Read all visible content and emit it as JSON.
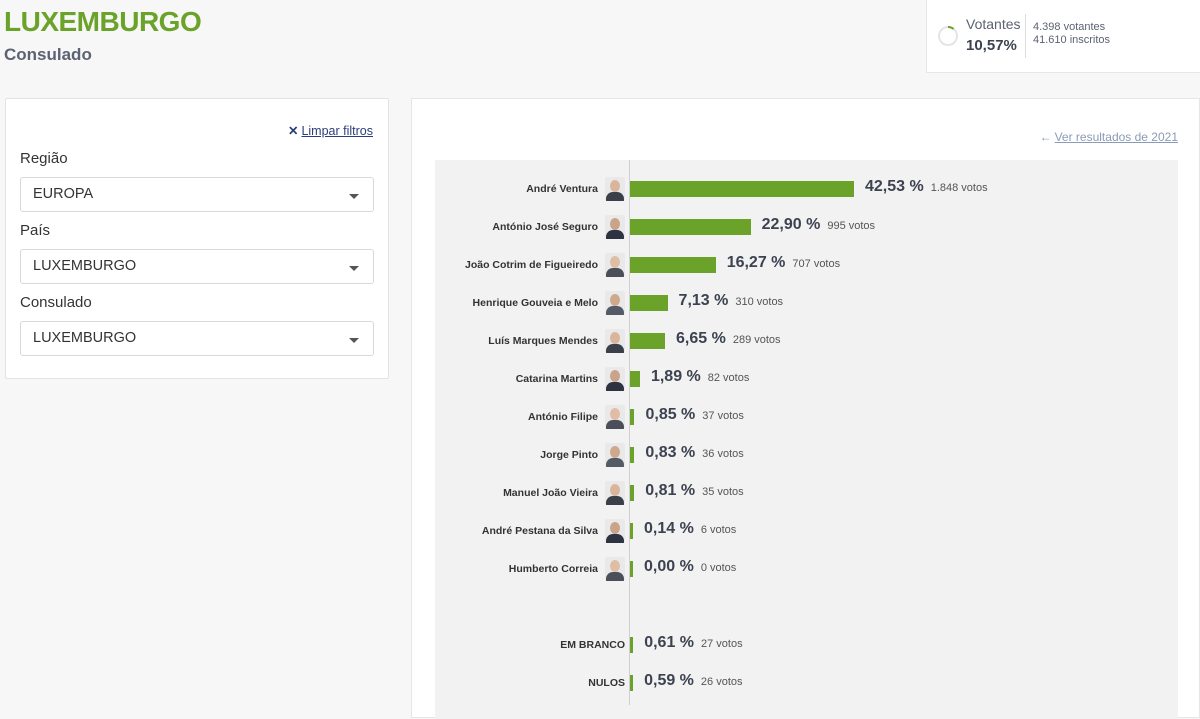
{
  "header": {
    "title": "LUXEMBURGO",
    "subtitle": "Consulado"
  },
  "turnout": {
    "label": "Votantes",
    "percent": "10,57%",
    "fraction": 0.1057,
    "voters": "4.398 votantes",
    "registered": "41.610 inscritos",
    "accent": "#6aa22a"
  },
  "filters": {
    "clear_icon": "close-icon",
    "clear_label": "Limpar filtros",
    "region": {
      "label": "Região",
      "value": "EUROPA"
    },
    "country": {
      "label": "País",
      "value": "LUXEMBURGO"
    },
    "consulate": {
      "label": "Consulado",
      "value": "LUXEMBURGO"
    }
  },
  "results": {
    "prev_icon": "arrow-left-icon",
    "prev_link": "Ver resultados de 2021"
  },
  "chart_data": {
    "type": "bar",
    "orientation": "horizontal",
    "bar_color": "#6aa22a",
    "xlim": [
      0,
      42.53
    ],
    "categories": [
      "André Ventura",
      "António José Seguro",
      "João Cotrim de Figueiredo",
      "Henrique Gouveia e Melo",
      "Luís Marques Mendes",
      "Catarina Martins",
      "António Filipe",
      "Jorge Pinto",
      "Manuel João Vieira",
      "André Pestana da Silva",
      "Humberto Correia",
      "EM BRANCO",
      "NULOS"
    ],
    "values": [
      42.53,
      22.9,
      16.27,
      7.13,
      6.65,
      1.89,
      0.85,
      0.83,
      0.81,
      0.14,
      0.0,
      0.61,
      0.59
    ],
    "percent_labels": [
      "42,53 %",
      "22,90 %",
      "16,27 %",
      "7,13 %",
      "6,65 %",
      "1,89 %",
      "0,85 %",
      "0,83 %",
      "0,81 %",
      "0,14 %",
      "0,00 %",
      "0,61 %",
      "0,59 %"
    ],
    "vote_labels": [
      "1.848 votos",
      "995 votos",
      "707 votos",
      "310 votos",
      "289 votos",
      "82 votos",
      "37 votos",
      "36 votos",
      "35 votos",
      "6 votos",
      "0 votos",
      "27 votos",
      "26 votos"
    ],
    "has_photo": [
      true,
      true,
      true,
      true,
      true,
      true,
      true,
      true,
      true,
      true,
      true,
      false,
      false
    ]
  }
}
